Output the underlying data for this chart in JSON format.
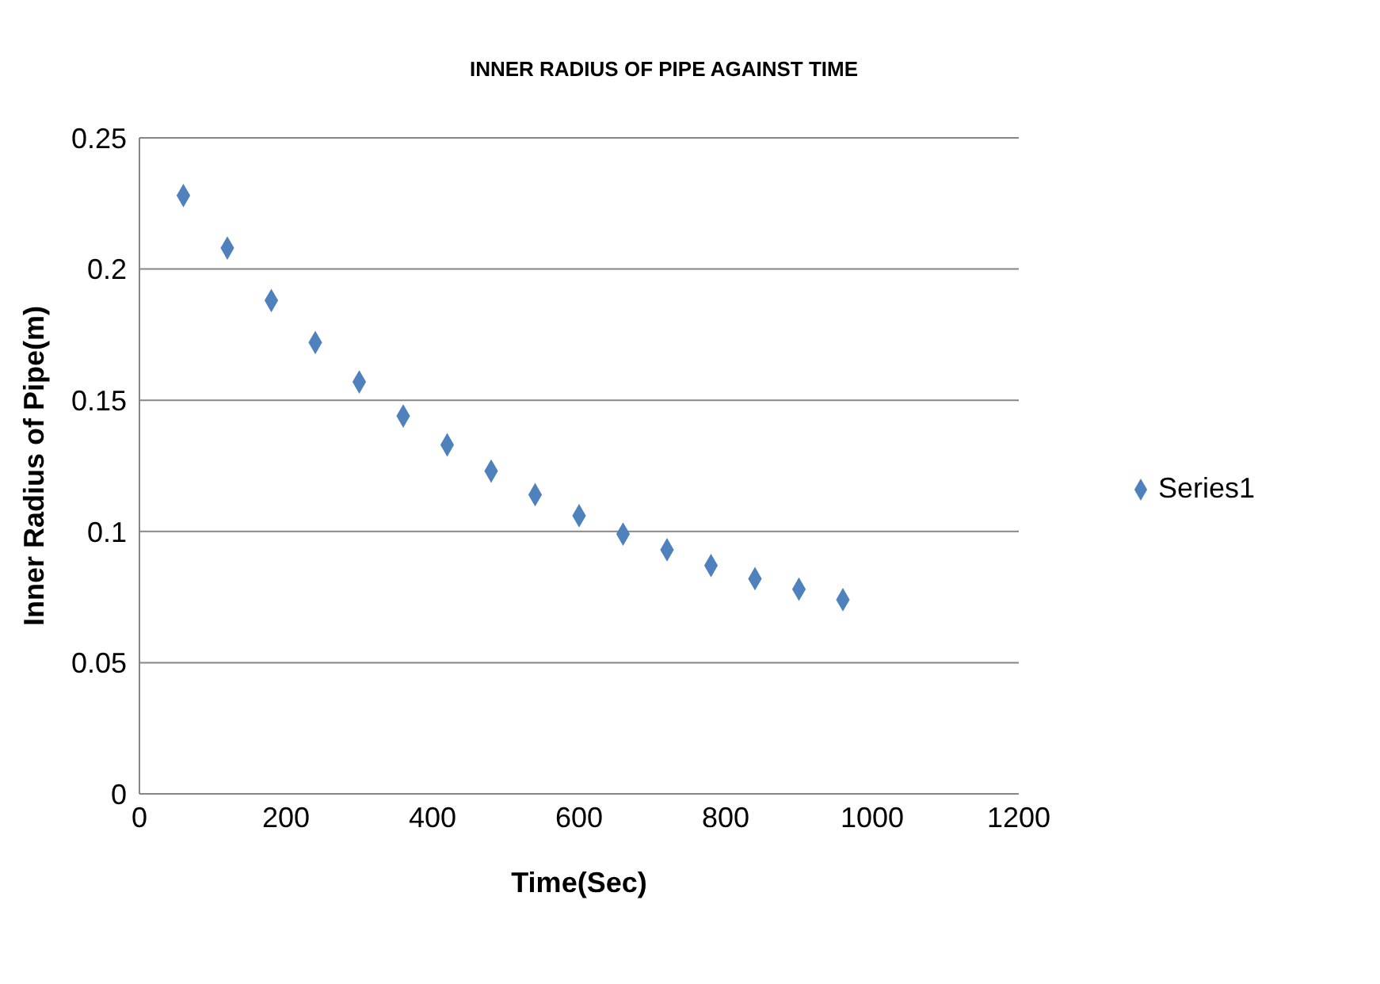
{
  "chart_data": {
    "type": "scatter",
    "title": "INNER RADIUS OF PIPE AGAINST TIME",
    "xlabel": "Time(Sec)",
    "ylabel": "Inner Radius of Pipe(m)",
    "x": [
      60,
      120,
      180,
      240,
      300,
      360,
      420,
      480,
      540,
      600,
      660,
      720,
      780,
      840,
      900,
      960
    ],
    "series": [
      {
        "name": "Series1",
        "color": "#4f81bd",
        "values": [
          0.228,
          0.208,
          0.188,
          0.172,
          0.157,
          0.144,
          0.133,
          0.123,
          0.114,
          0.106,
          0.099,
          0.093,
          0.087,
          0.082,
          0.078,
          0.074
        ]
      }
    ],
    "xlim": [
      0,
      1200
    ],
    "xticks": [
      0,
      200,
      400,
      600,
      800,
      1000,
      1200
    ],
    "ylim": [
      0,
      0.25
    ],
    "yticks": [
      0,
      0.05,
      0.1,
      0.15,
      0.2,
      0.25
    ],
    "grid": "y",
    "legend": "right",
    "marker": "diamond"
  }
}
